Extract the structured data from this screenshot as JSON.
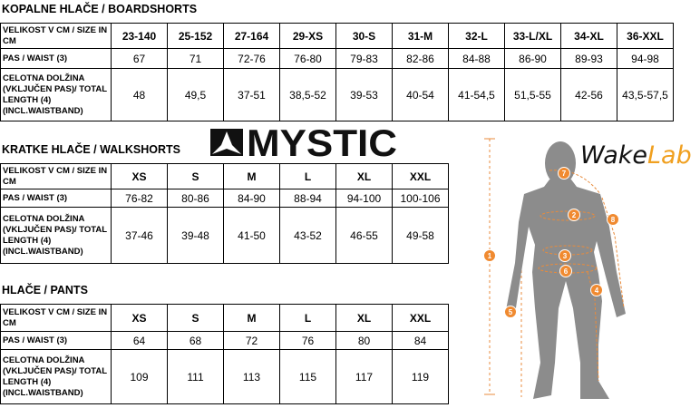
{
  "sections": [
    {
      "title": "KOPALNE HLAČE / BOARDSHORTS",
      "rows": [
        [
          [
            "VELIKOST V CM / SIZE IN",
            "CM"
          ],
          "23-140",
          "25-152",
          "27-164",
          "29-XS",
          "30-S",
          "31-M",
          "32-L",
          "33-L/XL",
          "34-XL",
          "36-XXL"
        ],
        [
          "PAS / WAIST (3)",
          "67",
          "71",
          "72-76",
          "76-80",
          "79-83",
          "82-86",
          "84-88",
          "86-90",
          "89-93",
          "94-98"
        ],
        [
          [
            "CELOTNA DOLŽINA",
            "(VKLJUČEN PAS)/ TOTAL",
            "LENGTH  (4)",
            "(INCL.WAISTBAND)"
          ],
          "48",
          "49,5",
          "37-51",
          "38,5-52",
          "39-53",
          "40-54",
          "41-54,5",
          "51,5-55",
          "42-56",
          "43,5-57,5"
        ]
      ]
    },
    {
      "title": "KRATKE HLAČE / WALKSHORTS",
      "rows": [
        [
          [
            "VELIKOST V CM / SIZE IN",
            "CM"
          ],
          "XS",
          "S",
          "M",
          "L",
          "XL",
          "XXL"
        ],
        [
          "PAS / WAIST (3)",
          "76-82",
          "80-86",
          "84-90",
          "88-94",
          "94-100",
          "100-106"
        ],
        [
          [
            "CELOTNA DOLŽINA",
            "(VKLJUČEN PAS)/ TOTAL",
            "LENGTH (4)",
            "(INCL.WAISTBAND)"
          ],
          "37-46",
          "39-48",
          "41-50",
          "43-52",
          "46-55",
          "49-58"
        ]
      ]
    },
    {
      "title": "HLAČE / PANTS",
      "rows": [
        [
          [
            "VELIKOST V CM / SIZE IN",
            "CM"
          ],
          "XS",
          "S",
          "M",
          "L",
          "XL",
          "XXL"
        ],
        [
          "PAS / WAIST (3)",
          "64",
          "68",
          "72",
          "76",
          "80",
          "84"
        ],
        [
          [
            "CELOTNA DOLŽINA",
            "(VKLJUČEN PAS)/ TOTAL",
            "LENGTH (4)",
            "(INCL.WAISTBAND)"
          ],
          "109",
          "111",
          "113",
          "115",
          "117",
          "119"
        ]
      ]
    }
  ],
  "logo": "MYSTIC",
  "brand": {
    "wake": "Wake",
    "lab": "Lab"
  },
  "markers": [
    "1",
    "2",
    "3",
    "4",
    "5",
    "6",
    "7",
    "8"
  ]
}
